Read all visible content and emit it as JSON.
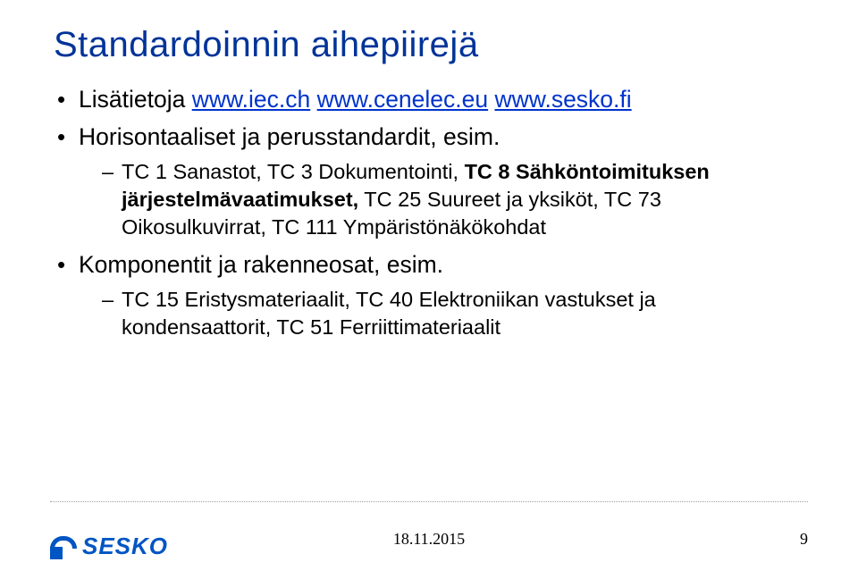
{
  "title": "Standardoinnin aihepiirejä",
  "bullets": {
    "b1_prefix": "Lisätietoja ",
    "b1_link1": "www.iec.ch",
    "b1_sep1": " ",
    "b1_link2": "www.cenelec.eu",
    "b1_sep2": " ",
    "b1_link3": "www.sesko.fi",
    "b2": "Horisontaaliset ja perusstandardit, esim.",
    "b2_sub_pre": "TC 1 Sanastot, TC 3 Dokumentointi, ",
    "b2_sub_bold": "TC 8 Sähköntoimituksen järjestelmävaatimukset,",
    "b2_sub_post": " TC 25 Suureet ja yksiköt, TC 73 Oikosulkuvirrat, TC 111 Ympäristönäkökohdat",
    "b3": "Komponentit ja rakenneosat, esim.",
    "b3_sub": "TC 15 Eristysmateriaalit, TC 40 Elektroniikan vastukset ja kondensaattorit, TC 51 Ferriittimateriaalit"
  },
  "footer": {
    "date": "18.11.2015",
    "page": "9"
  },
  "logo": {
    "text": "SESKO"
  },
  "colors": {
    "title": "#003399",
    "link": "#0033cc",
    "logo": "#0055c4",
    "divider": "#a0a0a0"
  }
}
